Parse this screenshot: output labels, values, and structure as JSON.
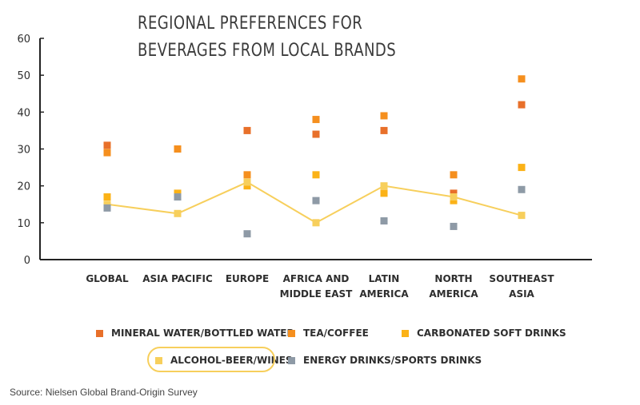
{
  "chart_data": {
    "type": "scatter",
    "title": "REGIONAL PREFERENCES FOR BEVERAGES FROM LOCAL BRANDS",
    "xlabel": "",
    "ylabel": "",
    "ylim": [
      0,
      60
    ],
    "yticks": [
      0,
      10,
      20,
      30,
      40,
      50,
      60
    ],
    "grid": false,
    "legend_position": "bottom",
    "categories": [
      "GLOBAL",
      "ASIA PACIFIC",
      "EUROPE",
      "AFRICA AND MIDDLE EAST",
      "LATIN AMERICA",
      "NORTH AMERICA",
      "SOUTHEAST ASIA"
    ],
    "category_lines": [
      [
        "GLOBAL"
      ],
      [
        "ASIA PACIFIC"
      ],
      [
        "EUROPE"
      ],
      [
        "AFRICA AND",
        "MIDDLE EAST"
      ],
      [
        "LATIN",
        "AMERICA"
      ],
      [
        "NORTH",
        "AMERICA"
      ],
      [
        "SOUTHEAST",
        "ASIA"
      ]
    ],
    "series": [
      {
        "name": "MINERAL WATER/BOTTLED WATER",
        "color": "#e8702a",
        "marker": "square",
        "values": [
          31,
          null,
          35,
          34,
          35,
          18,
          42
        ]
      },
      {
        "name": "TEA/COFFEE",
        "color": "#f58f1e",
        "marker": "square",
        "values": [
          29,
          30,
          23,
          38,
          39,
          23,
          49
        ]
      },
      {
        "name": "CARBONATED SOFT DRINKS",
        "color": "#fbb217",
        "marker": "square",
        "values": [
          17,
          18,
          20,
          23,
          18,
          16,
          25
        ]
      },
      {
        "name": "ALCOHOL-BEER/WINES",
        "color": "#f7cf5c",
        "marker": "square",
        "line": true,
        "values": [
          15,
          12.5,
          21,
          10,
          20,
          17,
          12
        ]
      },
      {
        "name": "ENERGY DRINKS/SPORTS DRINKS",
        "color": "#8e9aa6",
        "marker": "square",
        "values": [
          14,
          17,
          7,
          16,
          10.5,
          9,
          19
        ]
      }
    ],
    "highlighted_series": "ALCOHOL-BEER/WINES"
  },
  "source": "Source: Nielsen Global Brand-Origin Survey"
}
